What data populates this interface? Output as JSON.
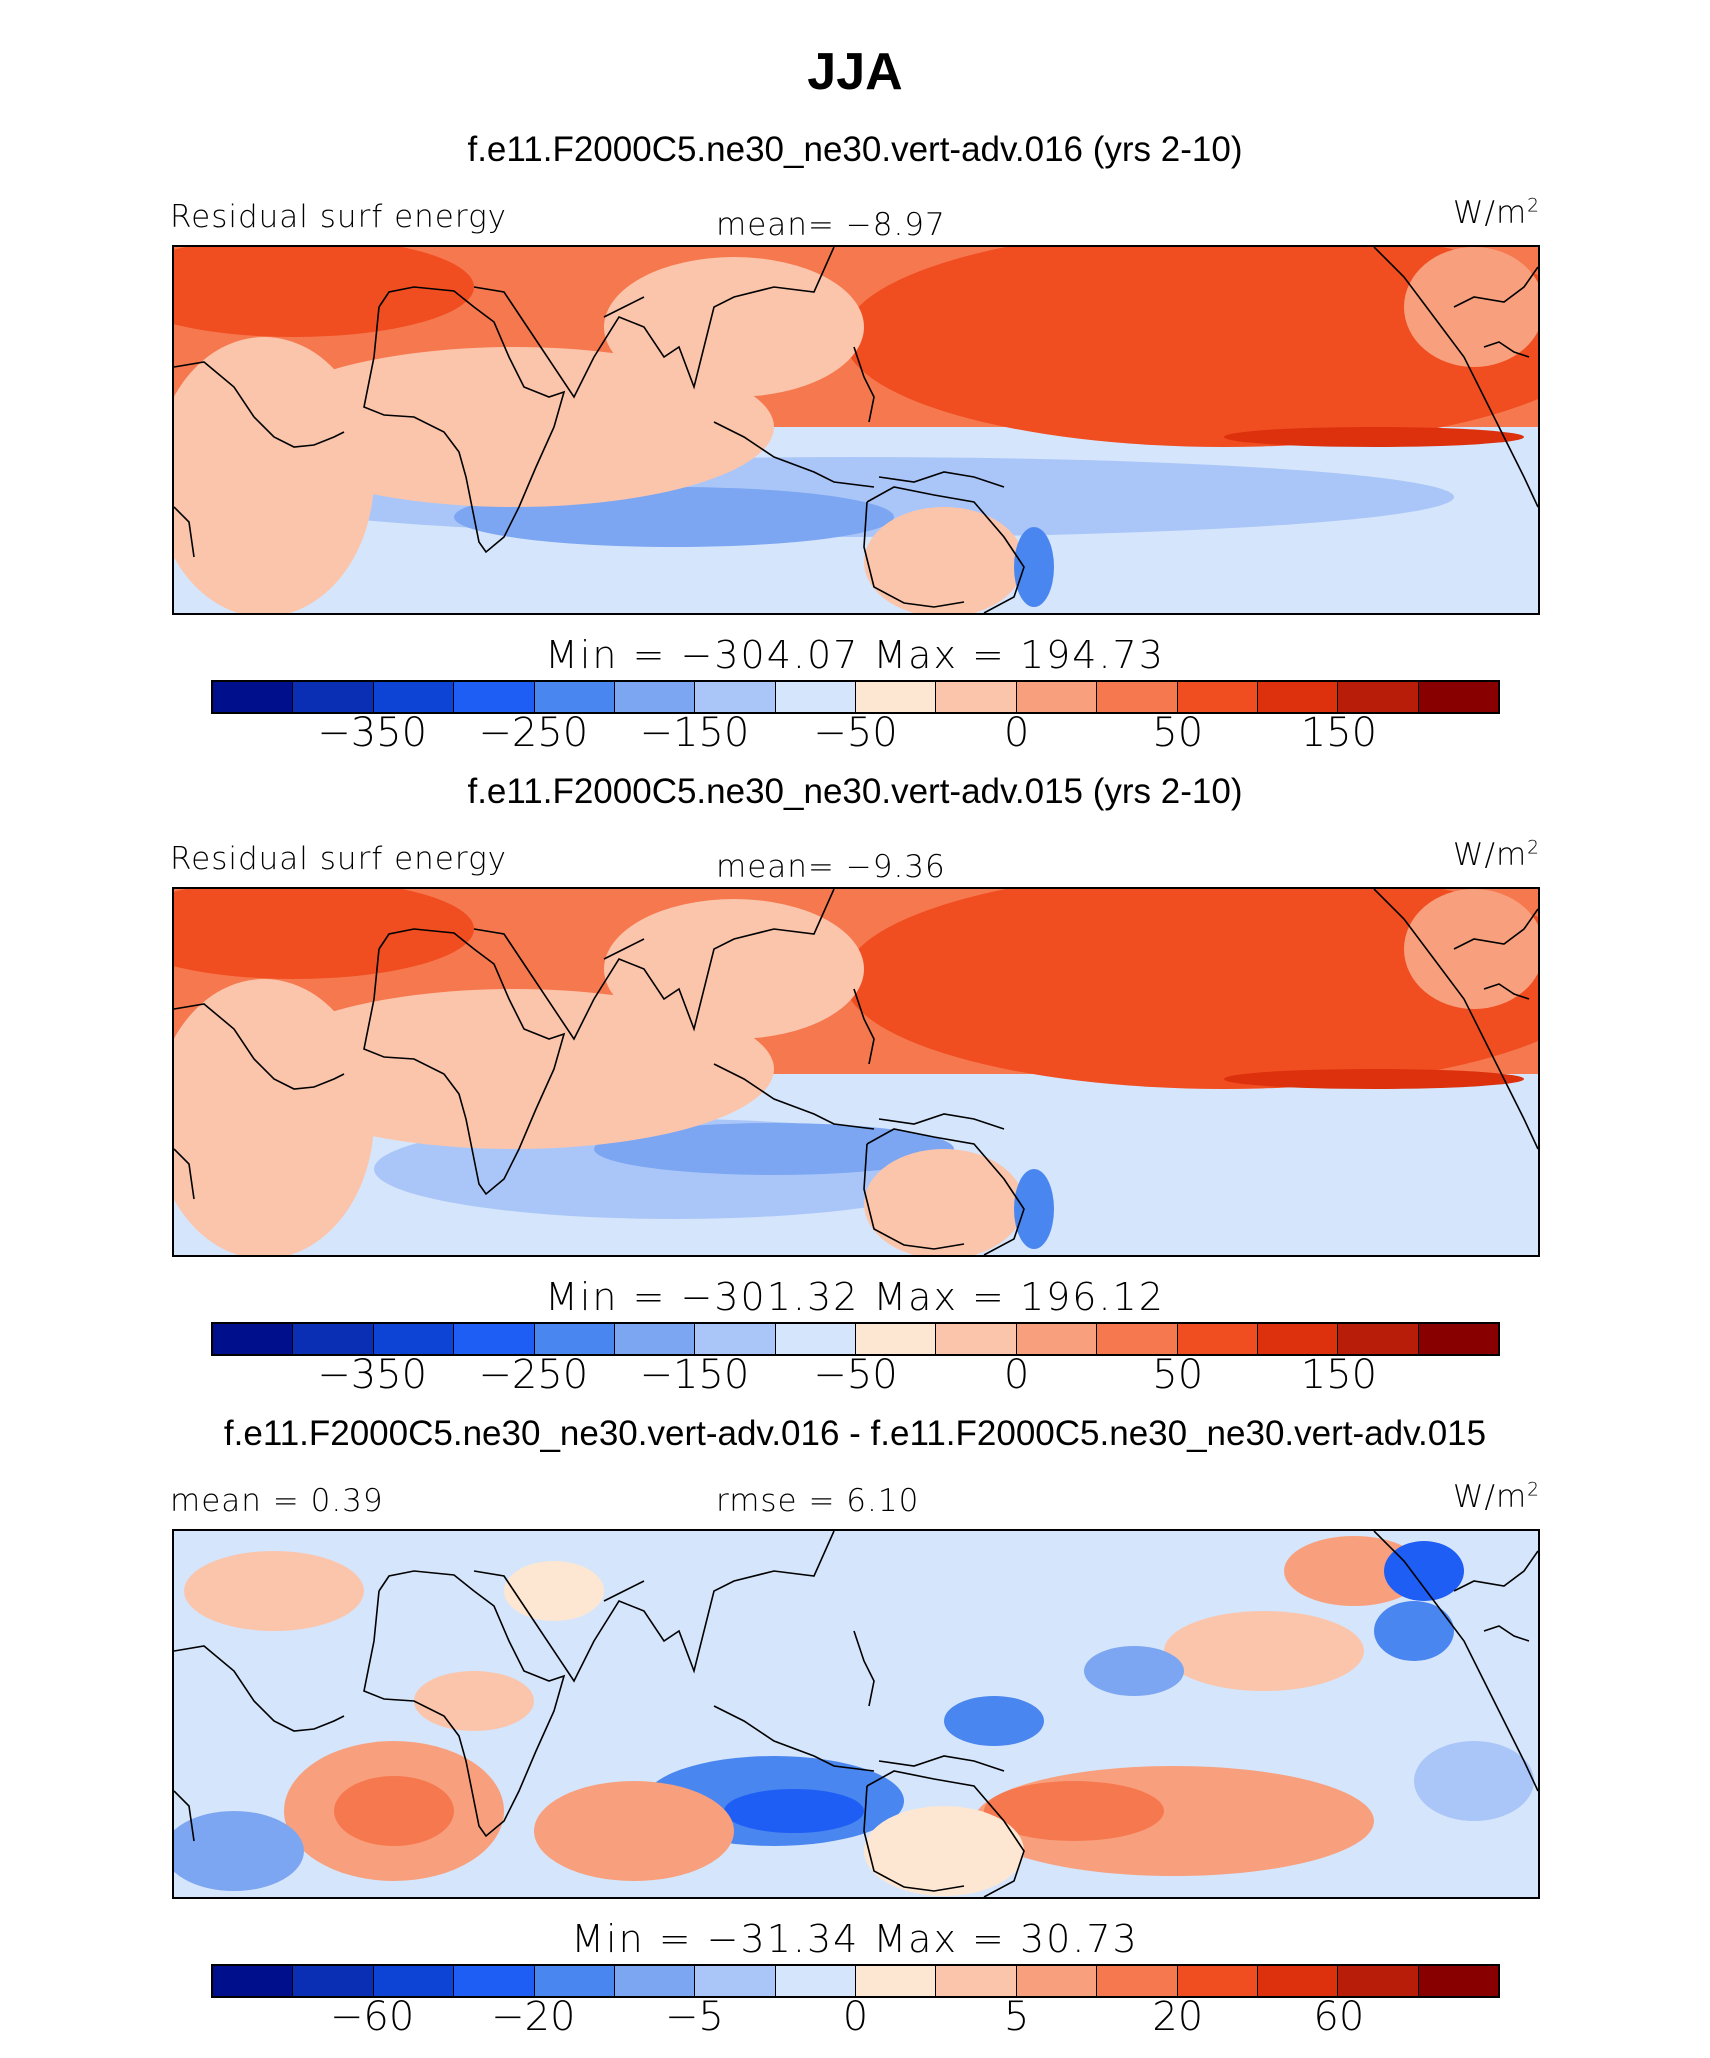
{
  "figure_title": "JJA",
  "colors": {
    "panel_scale": [
      "#00108c",
      "#0a2fb4",
      "#0d44d6",
      "#1f5ef5",
      "#4a86ef",
      "#7ca6f2",
      "#aac6f8",
      "#d5e5fb",
      "#fde7d3",
      "#fbc5ab",
      "#f8a07d",
      "#f6784f",
      "#f04d20",
      "#dc310c",
      "#b71d08",
      "#880000"
    ],
    "land": "#f9b99d",
    "coast": "#000000"
  },
  "chart_data": [
    {
      "type": "heatmap",
      "name": "panel-1",
      "title": "f.e11.F2000C5.ne30_ne30.vert-adv.016 (yrs 2-10)",
      "left_label": "Residual surf energy",
      "center_label": "mean=   −8.97",
      "units": "W/m",
      "units_sup": "2",
      "stats": "Min  =  −304.07  Max  =  194.73",
      "tick_labels": [
        "−350",
        "−250",
        "−150",
        "−50",
        "0",
        "50",
        "150"
      ],
      "tick_bins": [
        2,
        4,
        6,
        8,
        10,
        12,
        14
      ],
      "min": -304.07,
      "max": 194.73,
      "mean": -8.97
    },
    {
      "type": "heatmap",
      "name": "panel-2",
      "title": "f.e11.F2000C5.ne30_ne30.vert-adv.015 (yrs 2-10)",
      "left_label": "Residual surf energy",
      "center_label": "mean=   −9.36",
      "units": "W/m",
      "units_sup": "2",
      "stats": "Min  =  −301.32  Max  =  196.12",
      "tick_labels": [
        "−350",
        "−250",
        "−150",
        "−50",
        "0",
        "50",
        "150"
      ],
      "tick_bins": [
        2,
        4,
        6,
        8,
        10,
        12,
        14
      ],
      "min": -301.32,
      "max": 196.12,
      "mean": -9.36
    },
    {
      "type": "heatmap",
      "name": "panel-3",
      "title": "f.e11.F2000C5.ne30_ne30.vert-adv.016 - f.e11.F2000C5.ne30_ne30.vert-adv.015",
      "left_label": "mean =    0.39",
      "center_label": "rmse  =    6.10",
      "units": "W/m",
      "units_sup": "2",
      "stats": "Min  =  −31.34  Max  =   30.73",
      "tick_labels": [
        "−60",
        "−20",
        "−5",
        "0",
        "5",
        "20",
        "60"
      ],
      "tick_bins": [
        2,
        4,
        6,
        8,
        10,
        12,
        14
      ],
      "min": -31.34,
      "max": 30.73,
      "mean": 0.39,
      "rmse": 6.1
    }
  ]
}
